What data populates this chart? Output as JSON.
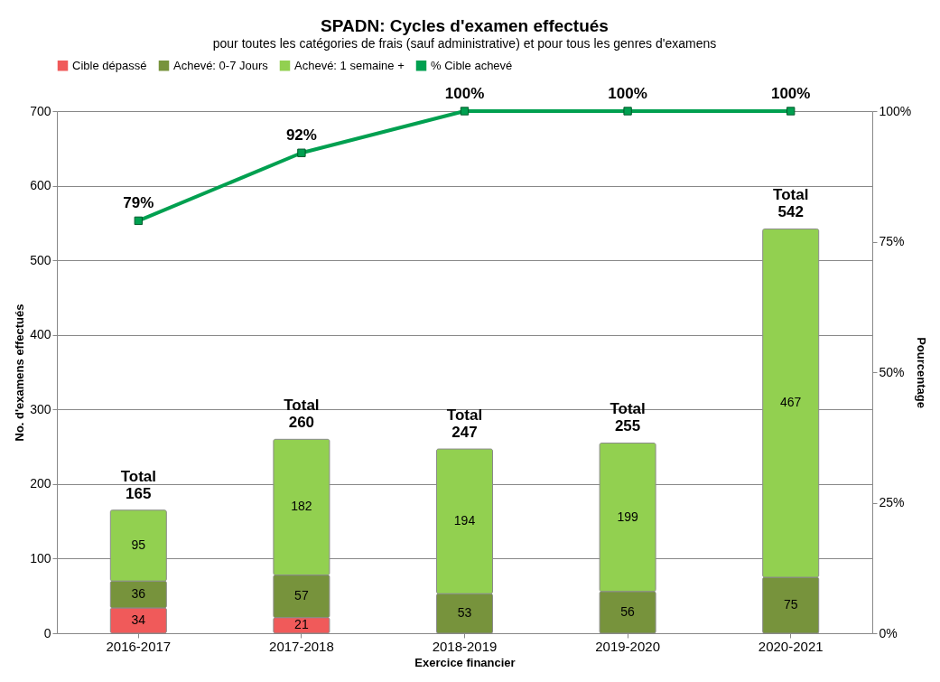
{
  "chart_data": {
    "type": "bar",
    "stacked": true,
    "title": "SPADN: Cycles d'examen effectués",
    "subtitle": "pour toutes les catégories de frais (sauf administrative) et pour tous les genres d'examens",
    "xlabel": "Exercice financier",
    "ylabel": "No. d'examens effectués",
    "y2label": "Pourcentage",
    "categories": [
      "2016-2017",
      "2017-2018",
      "2018-2019",
      "2019-2020",
      "2020-2021"
    ],
    "series": [
      {
        "name": "Cible dépassé",
        "color": "#f05a5a",
        "values": [
          34,
          21,
          0,
          0,
          0
        ],
        "value_labels": [
          "34",
          "21",
          null,
          null,
          null
        ]
      },
      {
        "name": "Achevé: 0-7 Jours",
        "color": "#77933c",
        "values": [
          36,
          57,
          53,
          56,
          75
        ],
        "value_labels": [
          "36",
          "57",
          "53",
          "56",
          "75"
        ]
      },
      {
        "name": "Achevé: 1 semaine +",
        "color": "#92d050",
        "values": [
          95,
          182,
          194,
          199,
          467
        ],
        "value_labels": [
          "95",
          "182",
          "194",
          "199",
          "467"
        ]
      },
      {
        "name": "% Cible achevé",
        "type": "line",
        "axis": "y2",
        "color": "#00a050",
        "marker": "square",
        "values": [
          79,
          92,
          100,
          100,
          100
        ],
        "value_labels": [
          "79%",
          "92%",
          "100%",
          "100%",
          "100%"
        ]
      }
    ],
    "totals": [
      "Total\n165",
      "Total\n260",
      "Total\n247",
      "Total\n255",
      "Total\n542"
    ],
    "ylim": [
      0,
      700
    ],
    "yticks": [
      0,
      100,
      200,
      300,
      400,
      500,
      600,
      700
    ],
    "y2lim": [
      0,
      100
    ],
    "y2ticks": [
      {
        "value": 0,
        "label": "0%"
      },
      {
        "value": 25,
        "label": "25%"
      },
      {
        "value": 50,
        "label": "50%"
      },
      {
        "value": 75,
        "label": "75%"
      },
      {
        "value": 100,
        "label": "100%"
      }
    ],
    "grid": "y",
    "legend": "top"
  }
}
